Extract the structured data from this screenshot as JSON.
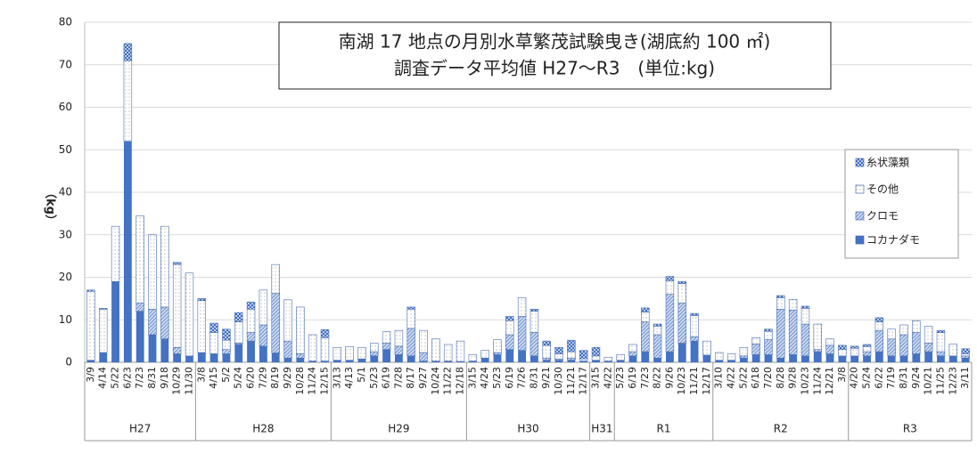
{
  "chart_data": {
    "type": "stacked-bar",
    "title": [
      "南湖 17 地点の月別水草繁茂試験曳き(湖底約 100 ㎡)",
      "調査データ平均値 H27～R3　(単位:kg)"
    ],
    "y_label": "（kg）",
    "groups": [
      {
        "label": "H27",
        "categories": [
          "3/9",
          "4/14",
          "5/22",
          "6/23",
          "7/23",
          "8/31",
          "9/18",
          "10/29",
          "11/30"
        ]
      },
      {
        "label": "H28",
        "categories": [
          "3/8",
          "4/15",
          "5/2",
          "5/24",
          "6/20",
          "7/29",
          "8/19",
          "9/29",
          "10/28",
          "11/24",
          "12/15"
        ]
      },
      {
        "label": "H29",
        "categories": [
          "3/13",
          "4/13",
          "5/1",
          "5/23",
          "6/19",
          "7/28",
          "8/17",
          "9/27",
          "10/24",
          "11/22",
          "12/18"
        ]
      },
      {
        "label": "H30",
        "categories": [
          "3/15",
          "4/24",
          "5/23",
          "6/19",
          "7/26",
          "8/31",
          "9/21",
          "10/30",
          "11/21",
          "12/17"
        ]
      },
      {
        "label": "H31",
        "categories": [
          "3/15",
          "4/22"
        ]
      },
      {
        "label": "R1",
        "categories": [
          "5/23",
          "6/19",
          "7/23",
          "8/22",
          "9/26",
          "10/23",
          "11/21",
          "12/17"
        ]
      },
      {
        "label": "R2",
        "categories": [
          "3/10",
          "4/22",
          "5/22",
          "6/18",
          "7/20",
          "8/28",
          "9/28",
          "10/23",
          "11/24",
          "12/21",
          "3/8"
        ]
      },
      {
        "label": "R3",
        "categories": [
          "4/20",
          "5/24",
          "6/22",
          "7/19",
          "8/31",
          "9/24",
          "10/21",
          "11/25",
          "12/23",
          "3/11"
        ]
      }
    ],
    "series": [
      {
        "name": "コカナダモ",
        "color": "#4472c4",
        "pattern": "solid",
        "values": [
          0.5,
          2.3,
          19,
          52,
          12,
          6.5,
          5.5,
          2,
          1.5,
          2.3,
          2,
          2,
          4.2,
          5,
          3.8,
          2.2,
          1,
          1,
          0.3,
          0.3,
          0.5,
          0.5,
          0.8,
          1.5,
          3,
          1.8,
          1.5,
          0.3,
          0.3,
          0.3,
          0.2,
          0.3,
          1,
          1.8,
          3,
          2.8,
          1.5,
          0.5,
          0.5,
          0.5,
          0.3,
          0.5,
          0.3,
          0.5,
          1.5,
          2.5,
          1,
          2.5,
          4.5,
          5,
          1.7,
          0.5,
          0.5,
          1,
          1.8,
          1.8,
          1,
          1.8,
          1.5,
          2.5,
          2,
          1.5,
          1.5,
          1.5,
          2.5,
          1.5,
          1.5,
          2,
          2.5,
          1.5,
          1.5,
          1
        ]
      },
      {
        "name": "クロモ",
        "color": "#4472c4",
        "pattern": "hatch",
        "values": [
          0,
          0,
          0,
          0,
          2,
          6,
          7.5,
          1.5,
          0,
          0,
          0,
          1,
          0.3,
          2,
          5,
          14,
          4,
          1,
          0,
          0,
          0,
          0,
          0,
          1,
          1.5,
          2,
          6.5,
          2,
          0,
          0,
          0,
          0,
          0,
          0.5,
          3.5,
          8,
          5.5,
          0.5,
          0.3,
          0.5,
          0,
          0,
          0,
          0,
          1,
          7,
          5.5,
          13.5,
          9.5,
          1,
          0,
          0,
          0,
          0.5,
          2.5,
          3.5,
          11.5,
          10.5,
          7.5,
          0.5,
          2,
          0,
          0,
          1,
          5,
          4,
          5,
          5,
          2,
          1,
          0,
          0.5
        ]
      },
      {
        "name": "その他",
        "color": "#ffffff",
        "pattern": "dots",
        "values": [
          16.2,
          10.2,
          13,
          19,
          20.5,
          17.5,
          19,
          19.5,
          19.5,
          12.2,
          5,
          2.2,
          5,
          5.5,
          8.2,
          6.8,
          9.7,
          11,
          6.2,
          5.5,
          3,
          3.2,
          2.7,
          2,
          2.7,
          3.7,
          4.5,
          5.2,
          5.2,
          3.9,
          4.8,
          1.5,
          1.8,
          3,
          3.3,
          4.4,
          5,
          3,
          1.2,
          1.5,
          0.5,
          1,
          0.9,
          1.3,
          1.7,
          2.3,
          2,
          3.2,
          4.5,
          5,
          3.3,
          1.8,
          1.5,
          2,
          1.5,
          2,
          2.7,
          2.5,
          3.7,
          6,
          1.5,
          1.5,
          1.8,
          1.2,
          2,
          2.3,
          2.3,
          2.8,
          4,
          4.5,
          2.8,
          0.5
        ]
      },
      {
        "name": "糸状藻類",
        "color": "#4472c4",
        "pattern": "checker",
        "values": [
          0.3,
          0.2,
          0,
          4,
          0,
          0,
          0,
          0.5,
          0,
          0.5,
          2.2,
          2.6,
          2.2,
          1.7,
          0,
          0,
          0,
          0,
          0,
          1.9,
          0,
          0,
          0,
          0,
          0,
          0,
          0.5,
          0,
          0,
          0,
          0,
          0,
          0,
          0,
          1,
          0,
          0.5,
          1,
          1.5,
          2.7,
          2,
          2,
          0,
          0,
          0,
          1,
          0.5,
          1,
          0.5,
          0.5,
          0,
          0,
          0,
          0,
          0,
          0.5,
          0.5,
          0,
          0.5,
          0,
          0,
          1,
          0.5,
          0.5,
          1,
          0,
          0,
          0,
          0,
          0.5,
          0,
          1.2
        ]
      }
    ],
    "ylim": [
      0,
      80
    ],
    "yticks": [
      0,
      10,
      20,
      30,
      40,
      50,
      60,
      70,
      80
    ],
    "grid": true
  }
}
